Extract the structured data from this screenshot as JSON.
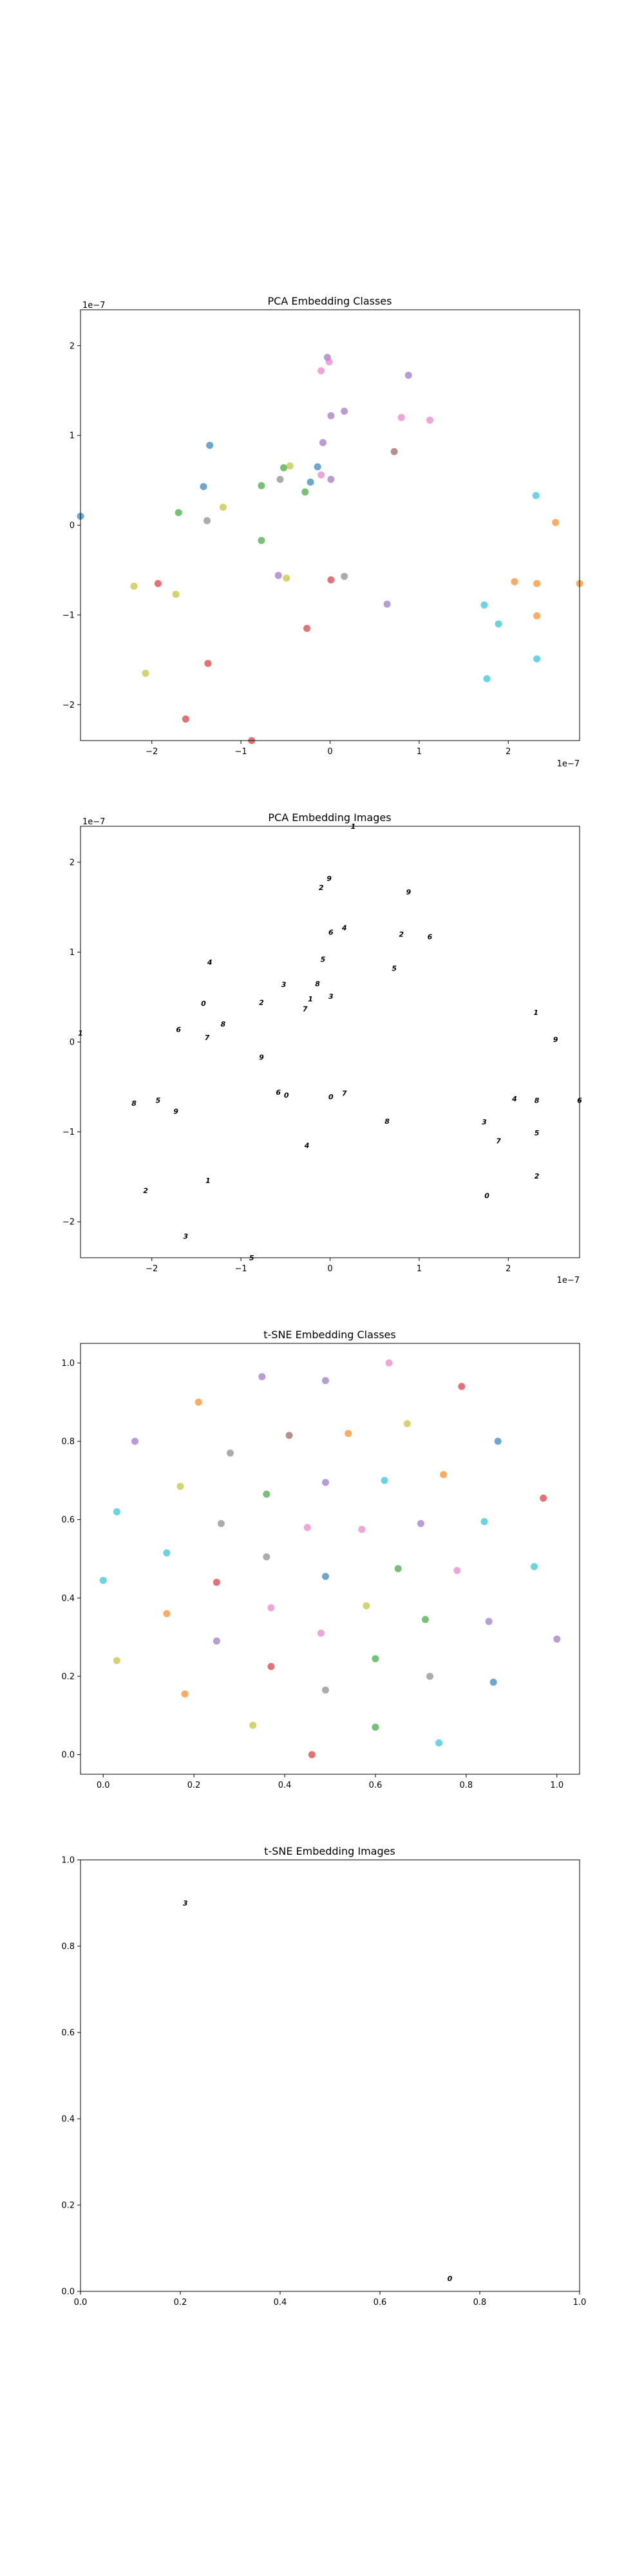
{
  "chart_data": [
    {
      "type": "scatter",
      "title": "PCA Embedding Classes",
      "xlabel": "",
      "ylabel": "",
      "x_offset_label": "1e−7",
      "y_offset_label": "1e−7",
      "xlim": [
        -2.8,
        2.8
      ],
      "ylim": [
        -2.4,
        2.4
      ],
      "xticks": [
        -2,
        -1,
        0,
        1,
        2
      ],
      "yticks": [
        -2,
        -1,
        0,
        1,
        2
      ],
      "xtick_labels": [
        "−2",
        "−1",
        "0",
        "1",
        "2"
      ],
      "ytick_labels": [
        "−2",
        "−1",
        "0",
        "1",
        "2"
      ],
      "grid": false,
      "marker": "circle",
      "points": [
        {
          "x": -2.8,
          "y": 0.1,
          "color": "#1f77b4"
        },
        {
          "x": -2.2,
          "y": -0.68,
          "color": "#bcbd22"
        },
        {
          "x": -1.93,
          "y": -0.65,
          "color": "#d62728"
        },
        {
          "x": -2.07,
          "y": -1.65,
          "color": "#bcbd22"
        },
        {
          "x": -1.73,
          "y": -0.77,
          "color": "#bcbd22"
        },
        {
          "x": -1.7,
          "y": 0.14,
          "color": "#2ca02c"
        },
        {
          "x": -1.62,
          "y": -2.16,
          "color": "#d62728"
        },
        {
          "x": -1.42,
          "y": 0.43,
          "color": "#1f77b4"
        },
        {
          "x": -1.38,
          "y": 0.05,
          "color": "#7f7f7f"
        },
        {
          "x": -1.35,
          "y": 0.89,
          "color": "#1f77b4"
        },
        {
          "x": -1.37,
          "y": -1.54,
          "color": "#d62728"
        },
        {
          "x": -1.2,
          "y": 0.2,
          "color": "#bcbd22"
        },
        {
          "x": -0.88,
          "y": -2.4,
          "color": "#d62728"
        },
        {
          "x": -0.77,
          "y": 0.44,
          "color": "#2ca02c"
        },
        {
          "x": -0.77,
          "y": -0.17,
          "color": "#2ca02c"
        },
        {
          "x": -0.58,
          "y": -0.56,
          "color": "#9467bd"
        },
        {
          "x": -0.56,
          "y": 0.51,
          "color": "#7f7f7f"
        },
        {
          "x": -0.52,
          "y": 0.64,
          "color": "#2ca02c"
        },
        {
          "x": -0.49,
          "y": -0.59,
          "color": "#bcbd22"
        },
        {
          "x": -0.45,
          "y": 0.66,
          "color": "#bcbd22"
        },
        {
          "x": -0.28,
          "y": 0.37,
          "color": "#2ca02c"
        },
        {
          "x": -0.26,
          "y": -1.15,
          "color": "#d62728"
        },
        {
          "x": -0.22,
          "y": 0.48,
          "color": "#1f77b4"
        },
        {
          "x": -0.14,
          "y": 0.65,
          "color": "#1f77b4"
        },
        {
          "x": -0.1,
          "y": 0.56,
          "color": "#e377c2"
        },
        {
          "x": -0.08,
          "y": 0.92,
          "color": "#9467bd"
        },
        {
          "x": -0.1,
          "y": 1.72,
          "color": "#e377c2"
        },
        {
          "x": -0.03,
          "y": 1.87,
          "color": "#9467bd"
        },
        {
          "x": -0.01,
          "y": 1.82,
          "color": "#e377c2"
        },
        {
          "x": 0.01,
          "y": 1.22,
          "color": "#9467bd"
        },
        {
          "x": 0.01,
          "y": 0.51,
          "color": "#9467bd"
        },
        {
          "x": 0.01,
          "y": -0.61,
          "color": "#d62728"
        },
        {
          "x": 0.16,
          "y": -0.57,
          "color": "#7f7f7f"
        },
        {
          "x": 0.16,
          "y": 1.27,
          "color": "#9467bd"
        },
        {
          "x": 0.64,
          "y": -0.88,
          "color": "#9467bd"
        },
        {
          "x": 0.72,
          "y": 0.82,
          "color": "#8c564b"
        },
        {
          "x": 0.8,
          "y": 1.2,
          "color": "#e377c2"
        },
        {
          "x": 0.88,
          "y": 1.67,
          "color": "#9467bd"
        },
        {
          "x": 1.12,
          "y": 1.17,
          "color": "#e377c2"
        },
        {
          "x": 1.73,
          "y": -0.89,
          "color": "#17becf"
        },
        {
          "x": 1.76,
          "y": -1.71,
          "color": "#17becf"
        },
        {
          "x": 1.89,
          "y": -1.1,
          "color": "#17becf"
        },
        {
          "x": 2.07,
          "y": -0.63,
          "color": "#ff7f0e"
        },
        {
          "x": 2.31,
          "y": 0.33,
          "color": "#17becf"
        },
        {
          "x": 2.32,
          "y": -0.65,
          "color": "#ff7f0e"
        },
        {
          "x": 2.32,
          "y": -1.01,
          "color": "#ff7f0e"
        },
        {
          "x": 2.32,
          "y": -1.49,
          "color": "#17becf"
        },
        {
          "x": 2.53,
          "y": 0.03,
          "color": "#ff7f0e"
        },
        {
          "x": 2.8,
          "y": -0.65,
          "color": "#ff7f0e"
        }
      ]
    },
    {
      "type": "scatter",
      "title": "PCA Embedding Images",
      "xlabel": "",
      "ylabel": "",
      "x_offset_label": "1e−7",
      "y_offset_label": "1e−7",
      "xlim": [
        -2.8,
        2.8
      ],
      "ylim": [
        -2.4,
        2.4
      ],
      "xticks": [
        -2,
        -1,
        0,
        1,
        2
      ],
      "yticks": [
        -2,
        -1,
        0,
        1,
        2
      ],
      "xtick_labels": [
        "−2",
        "−1",
        "0",
        "1",
        "2"
      ],
      "ytick_labels": [
        "−2",
        "−1",
        "0",
        "1",
        "2"
      ],
      "grid": false,
      "marker": "small handwritten-digit image",
      "points": [
        {
          "x": -2.8,
          "y": 0.1
        },
        {
          "x": -2.2,
          "y": -0.68
        },
        {
          "x": -1.93,
          "y": -0.65
        },
        {
          "x": -2.07,
          "y": -1.65
        },
        {
          "x": -1.73,
          "y": -0.77
        },
        {
          "x": -1.7,
          "y": 0.14
        },
        {
          "x": -1.62,
          "y": -2.16
        },
        {
          "x": -1.42,
          "y": 0.43
        },
        {
          "x": -1.38,
          "y": 0.05
        },
        {
          "x": -1.35,
          "y": 0.89
        },
        {
          "x": -1.37,
          "y": -1.54
        },
        {
          "x": -1.2,
          "y": 0.2
        },
        {
          "x": -0.88,
          "y": -2.4
        },
        {
          "x": -0.77,
          "y": 0.44
        },
        {
          "x": -0.77,
          "y": -0.17
        },
        {
          "x": -0.58,
          "y": -0.56
        },
        {
          "x": -0.52,
          "y": 0.64
        },
        {
          "x": -0.49,
          "y": -0.59
        },
        {
          "x": -0.28,
          "y": 0.37
        },
        {
          "x": -0.26,
          "y": -1.15
        },
        {
          "x": -0.22,
          "y": 0.48
        },
        {
          "x": -0.14,
          "y": 0.65
        },
        {
          "x": -0.08,
          "y": 0.92
        },
        {
          "x": -0.1,
          "y": 1.72
        },
        {
          "x": -0.01,
          "y": 1.82
        },
        {
          "x": 0.01,
          "y": 1.22
        },
        {
          "x": 0.01,
          "y": 0.51
        },
        {
          "x": 0.01,
          "y": -0.61
        },
        {
          "x": 0.16,
          "y": -0.57
        },
        {
          "x": 0.16,
          "y": 1.27
        },
        {
          "x": 0.26,
          "y": 2.4
        },
        {
          "x": 0.64,
          "y": -0.88
        },
        {
          "x": 0.72,
          "y": 0.82
        },
        {
          "x": 0.8,
          "y": 1.2
        },
        {
          "x": 0.88,
          "y": 1.67
        },
        {
          "x": 1.12,
          "y": 1.17
        },
        {
          "x": 1.73,
          "y": -0.89
        },
        {
          "x": 1.76,
          "y": -1.71
        },
        {
          "x": 1.89,
          "y": -1.1
        },
        {
          "x": 2.07,
          "y": -0.63
        },
        {
          "x": 2.31,
          "y": 0.33
        },
        {
          "x": 2.32,
          "y": -0.65
        },
        {
          "x": 2.32,
          "y": -1.01
        },
        {
          "x": 2.32,
          "y": -1.49
        },
        {
          "x": 2.53,
          "y": 0.03
        },
        {
          "x": 2.8,
          "y": -0.65
        }
      ]
    },
    {
      "type": "scatter",
      "title": "t-SNE Embedding Classes",
      "xlabel": "",
      "ylabel": "",
      "xlim": [
        -0.05,
        1.05
      ],
      "ylim": [
        -0.05,
        1.05
      ],
      "xticks": [
        0.0,
        0.2,
        0.4,
        0.6,
        0.8,
        1.0
      ],
      "yticks": [
        0.0,
        0.2,
        0.4,
        0.6,
        0.8,
        1.0
      ],
      "xtick_labels": [
        "0.0",
        "0.2",
        "0.4",
        "0.6",
        "0.8",
        "1.0"
      ],
      "ytick_labels": [
        "0.0",
        "0.2",
        "0.4",
        "0.6",
        "0.8",
        "1.0"
      ],
      "grid": false,
      "marker": "circle",
      "points": [
        {
          "x": 0.35,
          "y": 0.965,
          "color": "#9467bd"
        },
        {
          "x": 0.49,
          "y": 0.955,
          "color": "#9467bd"
        },
        {
          "x": 0.63,
          "y": 1.0,
          "color": "#e377c2"
        },
        {
          "x": 0.79,
          "y": 0.94,
          "color": "#d62728"
        },
        {
          "x": 0.21,
          "y": 0.9,
          "color": "#ff7f0e"
        },
        {
          "x": 0.07,
          "y": 0.8,
          "color": "#9467bd"
        },
        {
          "x": 0.28,
          "y": 0.77,
          "color": "#7f7f7f"
        },
        {
          "x": 0.41,
          "y": 0.815,
          "color": "#8c564b"
        },
        {
          "x": 0.54,
          "y": 0.82,
          "color": "#ff7f0e"
        },
        {
          "x": 0.67,
          "y": 0.845,
          "color": "#bcbd22"
        },
        {
          "x": 0.87,
          "y": 0.8,
          "color": "#1f77b4"
        },
        {
          "x": 0.17,
          "y": 0.685,
          "color": "#bcbd22"
        },
        {
          "x": 0.36,
          "y": 0.665,
          "color": "#2ca02c"
        },
        {
          "x": 0.49,
          "y": 0.695,
          "color": "#9467bd"
        },
        {
          "x": 0.62,
          "y": 0.7,
          "color": "#17becf"
        },
        {
          "x": 0.75,
          "y": 0.715,
          "color": "#ff7f0e"
        },
        {
          "x": 0.97,
          "y": 0.655,
          "color": "#d62728"
        },
        {
          "x": 0.03,
          "y": 0.62,
          "color": "#17becf"
        },
        {
          "x": 0.26,
          "y": 0.59,
          "color": "#7f7f7f"
        },
        {
          "x": 0.45,
          "y": 0.58,
          "color": "#e377c2"
        },
        {
          "x": 0.57,
          "y": 0.575,
          "color": "#e377c2"
        },
        {
          "x": 0.7,
          "y": 0.59,
          "color": "#9467bd"
        },
        {
          "x": 0.84,
          "y": 0.595,
          "color": "#17becf"
        },
        {
          "x": 0.14,
          "y": 0.515,
          "color": "#17becf"
        },
        {
          "x": 0.36,
          "y": 0.505,
          "color": "#7f7f7f"
        },
        {
          "x": 0.49,
          "y": 0.455,
          "color": "#1f77b4"
        },
        {
          "x": 0.78,
          "y": 0.47,
          "color": "#e377c2"
        },
        {
          "x": 0.95,
          "y": 0.48,
          "color": "#17becf"
        },
        {
          "x": 0.0,
          "y": 0.445,
          "color": "#17becf"
        },
        {
          "x": 0.25,
          "y": 0.44,
          "color": "#d62728"
        },
        {
          "x": 0.58,
          "y": 0.38,
          "color": "#bcbd22"
        },
        {
          "x": 0.65,
          "y": 0.475,
          "color": "#2ca02c"
        },
        {
          "x": 0.37,
          "y": 0.375,
          "color": "#e377c2"
        },
        {
          "x": 0.14,
          "y": 0.36,
          "color": "#ff7f0e"
        },
        {
          "x": 0.71,
          "y": 0.345,
          "color": "#2ca02c"
        },
        {
          "x": 0.85,
          "y": 0.34,
          "color": "#9467bd"
        },
        {
          "x": 0.48,
          "y": 0.31,
          "color": "#e377c2"
        },
        {
          "x": 0.25,
          "y": 0.29,
          "color": "#9467bd"
        },
        {
          "x": 1.0,
          "y": 0.295,
          "color": "#9467bd"
        },
        {
          "x": 0.03,
          "y": 0.24,
          "color": "#bcbd22"
        },
        {
          "x": 0.6,
          "y": 0.245,
          "color": "#2ca02c"
        },
        {
          "x": 0.37,
          "y": 0.225,
          "color": "#d62728"
        },
        {
          "x": 0.72,
          "y": 0.2,
          "color": "#7f7f7f"
        },
        {
          "x": 0.86,
          "y": 0.185,
          "color": "#1f77b4"
        },
        {
          "x": 0.18,
          "y": 0.155,
          "color": "#ff7f0e"
        },
        {
          "x": 0.49,
          "y": 0.165,
          "color": "#7f7f7f"
        },
        {
          "x": 0.33,
          "y": 0.075,
          "color": "#bcbd22"
        },
        {
          "x": 0.6,
          "y": 0.07,
          "color": "#2ca02c"
        },
        {
          "x": 0.74,
          "y": 0.03,
          "color": "#17becf"
        },
        {
          "x": 0.46,
          "y": 0.0,
          "color": "#d62728"
        }
      ]
    },
    {
      "type": "scatter",
      "title": "t-SNE Embedding Images",
      "xlabel": "",
      "ylabel": "",
      "xlim": [
        0.0,
        1.0
      ],
      "ylim": [
        0.0,
        1.0
      ],
      "xticks": [
        0.0,
        0.2,
        0.4,
        0.6,
        0.8,
        1.0
      ],
      "yticks": [
        0.0,
        0.2,
        0.4,
        0.6,
        0.8,
        1.0
      ],
      "xtick_labels": [
        "0.0",
        "0.2",
        "0.4",
        "0.6",
        "0.8",
        "1.0"
      ],
      "ytick_labels": [
        "0.0",
        "0.2",
        "0.4",
        "0.6",
        "0.8",
        "1.0"
      ],
      "grid": false,
      "marker": "small handwritten-digit image",
      "points": [
        {
          "x": 0.21,
          "y": 0.9
        },
        {
          "x": 0.74,
          "y": 0.03
        }
      ]
    }
  ]
}
